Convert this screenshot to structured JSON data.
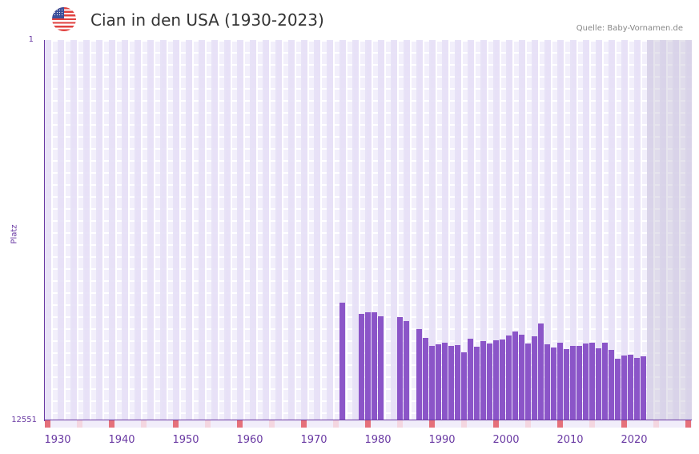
{
  "header": {
    "flag_icon": "us-flag-icon",
    "title": "Cian in den USA (1930-2023)",
    "source": "Quelle: Baby-Vornamen.de"
  },
  "colors": {
    "bar": "#8b55c8",
    "axis": "#6a3aa3",
    "decade_marker": "#e5707a",
    "half_decade_marker": "#f4d6e0"
  },
  "chart_data": {
    "type": "bar",
    "title": "Cian in den USA (1930-2023)",
    "xlabel": "",
    "ylabel": "Platz",
    "y_inverted": true,
    "ylim": [
      1,
      12551
    ],
    "y_ticks": [
      "1",
      "12551"
    ],
    "x_ticks": [
      "1930",
      "1940",
      "1950",
      "1960",
      "1970",
      "1980",
      "1990",
      "2000",
      "2010",
      "2020"
    ],
    "x_range": [
      1928,
      2028
    ],
    "grid": true,
    "shaded_future_from": 2022,
    "categories": [
      1974,
      1977,
      1978,
      1979,
      1980,
      1983,
      1984,
      1986,
      1987,
      1988,
      1989,
      1990,
      1991,
      1992,
      1993,
      1994,
      1995,
      1996,
      1997,
      1998,
      1999,
      2000,
      2001,
      2002,
      2003,
      2004,
      2005,
      2006,
      2007,
      2008,
      2009,
      2010,
      2011,
      2012,
      2013,
      2014,
      2015,
      2016,
      2017,
      2018,
      2019,
      2020,
      2021
    ],
    "values": [
      8670,
      9040,
      8990,
      8990,
      9120,
      9150,
      9280,
      9540,
      9830,
      10100,
      10040,
      9990,
      10100,
      10070,
      10310,
      9860,
      10120,
      9940,
      10020,
      9910,
      9880,
      9750,
      9620,
      9730,
      10020,
      9780,
      9360,
      10040,
      10150,
      9990,
      10200,
      10100,
      10100,
      10020,
      9990,
      10170,
      9990,
      10230,
      10520,
      10410,
      10390,
      10490,
      10440
    ]
  },
  "axis": {
    "ylabel": "Platz",
    "ytick_top": "1",
    "ytick_bottom": "12551",
    "xticks": [
      "1930",
      "1940",
      "1950",
      "1960",
      "1970",
      "1980",
      "1990",
      "2000",
      "2010",
      "2020"
    ]
  }
}
